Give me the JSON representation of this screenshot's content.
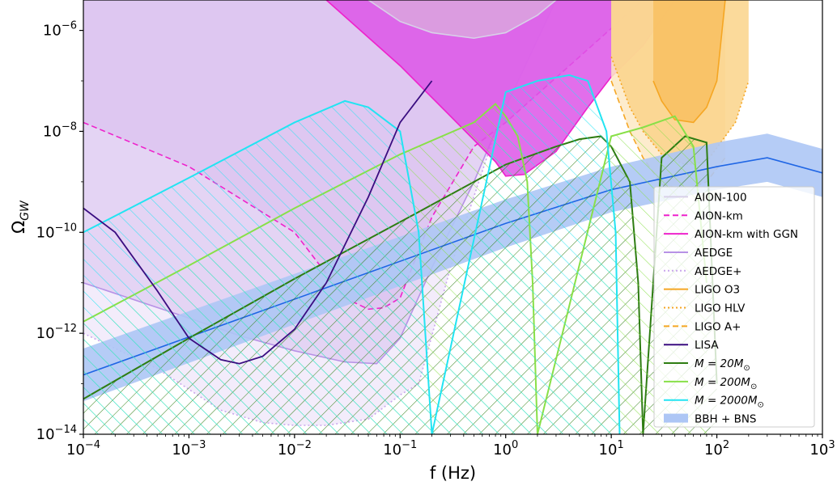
{
  "chart_data": {
    "type": "line",
    "xlabel": "f (Hz)",
    "ylabel": "Ω_GW",
    "xscale": "log",
    "yscale": "log",
    "xlim": [
      0.0001,
      1000
    ],
    "ylim": [
      1e-14,
      4e-06
    ],
    "x_ticks": [
      {
        "value": 0.0001,
        "base": "10",
        "exp": "−4"
      },
      {
        "value": 0.001,
        "base": "10",
        "exp": "−3"
      },
      {
        "value": 0.01,
        "base": "10",
        "exp": "−2"
      },
      {
        "value": 0.1,
        "base": "10",
        "exp": "−1"
      },
      {
        "value": 1,
        "base": "10",
        "exp": "0"
      },
      {
        "value": 10,
        "base": "10",
        "exp": "1"
      },
      {
        "value": 100,
        "base": "10",
        "exp": "2"
      },
      {
        "value": 1000,
        "base": "10",
        "exp": "3"
      }
    ],
    "y_ticks": [
      {
        "value": 1e-14,
        "base": "10",
        "exp": "−14"
      },
      {
        "value": 1e-12,
        "base": "10",
        "exp": "−12"
      },
      {
        "value": 1e-10,
        "base": "10",
        "exp": "−10"
      },
      {
        "value": 1e-08,
        "base": "10",
        "exp": "−8"
      },
      {
        "value": 1e-06,
        "base": "10",
        "exp": "−6"
      }
    ],
    "legend_position": "lower-right",
    "series": [
      {
        "name": "AION-100",
        "kind": "sensitivity-region",
        "color": "#d8d0e8",
        "fill": "#dba6de",
        "line": "solid",
        "x": [
          0.05,
          0.1,
          0.2,
          0.5,
          1,
          2,
          3
        ],
        "y": [
          4e-06,
          1.5e-06,
          9e-07,
          7e-07,
          9e-07,
          2e-06,
          4e-06
        ]
      },
      {
        "name": "AION-km",
        "kind": "sensitivity-region",
        "color": "#ee22cc",
        "fill": "#ddc4f0",
        "line": "dashed",
        "x": [
          0.0001,
          0.001,
          0.01,
          0.03,
          0.05,
          0.07,
          0.1,
          0.2,
          0.5,
          1,
          5,
          20
        ],
        "y": [
          1.5e-08,
          2e-09,
          1e-10,
          5e-12,
          3e-12,
          3.2e-12,
          5e-12,
          2e-10,
          5e-09,
          1.5e-08,
          3e-07,
          4e-06
        ]
      },
      {
        "name": "AION-km with GGN",
        "kind": "sensitivity-region",
        "color": "#ee22cc",
        "fill": "#dd55e8",
        "line": "solid",
        "x": [
          0.02,
          0.1,
          0.3,
          0.8,
          1,
          1.5,
          3,
          6,
          10,
          20,
          40
        ],
        "y": [
          4e-06,
          2e-07,
          2e-08,
          2.5e-09,
          1.3e-09,
          1.4e-09,
          4e-09,
          3e-08,
          1.2e-07,
          5e-07,
          4e-06
        ]
      },
      {
        "name": "AEDGE",
        "kind": "sensitivity-region",
        "color": "#b792e6",
        "fill": "#e0d0f2",
        "line": "solid",
        "x": [
          0.0001,
          0.001,
          0.003,
          0.01,
          0.03,
          0.06,
          0.1,
          0.2,
          0.5,
          1,
          3
        ],
        "y": [
          1e-11,
          2e-12,
          9e-13,
          4.5e-13,
          2.7e-13,
          2.5e-13,
          8e-13,
          2e-11,
          1e-09,
          3e-08,
          4e-06
        ]
      },
      {
        "name": "AEDGE+",
        "kind": "sensitivity-region",
        "color": "#c9a6ec",
        "fill": "#f1e9fa",
        "line": "dotted",
        "x": [
          0.0001,
          0.0005,
          0.002,
          0.005,
          0.01,
          0.02,
          0.05,
          0.1,
          0.15,
          0.3,
          0.8,
          2
        ],
        "y": [
          1e-12,
          2e-13,
          3e-14,
          1.7e-14,
          1.5e-14,
          1.5e-14,
          2e-14,
          6e-14,
          1e-13,
          2e-11,
          1e-08,
          4e-06
        ]
      },
      {
        "name": "LIGO O3",
        "kind": "sensitivity-region",
        "color": "#f5a623",
        "fill": "#f8c060",
        "line": "solid",
        "x": [
          25,
          30,
          40,
          60,
          80,
          100,
          120
        ],
        "y": [
          1e-07,
          4e-08,
          1.7e-08,
          1.5e-08,
          3e-08,
          1e-07,
          4e-06
        ]
      },
      {
        "name": "LIGO HLV",
        "kind": "sensitivity-region",
        "color": "#f5a623",
        "fill": "#fad48a",
        "line": "dotted",
        "x": [
          10,
          15,
          20,
          30,
          50,
          80,
          150,
          200
        ],
        "y": [
          3e-07,
          3e-08,
          1e-08,
          3.5e-09,
          2.2e-09,
          2.5e-09,
          1.5e-08,
          1e-07
        ]
      },
      {
        "name": "LIGO A+",
        "kind": "sensitivity-region",
        "color": "#f5a623",
        "fill": "#fde9c4",
        "line": "dashed",
        "x": [
          10,
          15,
          20,
          30,
          50,
          80,
          120
        ],
        "y": [
          1e-07,
          1e-08,
          3e-09,
          9e-10,
          7e-10,
          1e-09,
          3e-09
        ]
      },
      {
        "name": "LISA",
        "kind": "sensitivity-curve",
        "color": "#3a0d80",
        "line": "solid",
        "x": [
          0.0001,
          0.0002,
          0.0005,
          0.001,
          0.002,
          0.003,
          0.005,
          0.01,
          0.02,
          0.05,
          0.1,
          0.2
        ],
        "y": [
          3e-10,
          1e-10,
          7e-12,
          8e-13,
          3e-13,
          2.5e-13,
          3.5e-13,
          1.2e-12,
          1e-11,
          5e-10,
          1.5e-08,
          1e-07
        ]
      },
      {
        "name": "M = 20M_⊙",
        "legend_label": {
          "pre": "M = 20M",
          "sub": "⊙"
        },
        "kind": "model",
        "color": "#2e7d12",
        "line": "solid",
        "x": [
          0.0001,
          0.001,
          0.01,
          0.1,
          1,
          3,
          5,
          8,
          10,
          15,
          18,
          20,
          30,
          50,
          80,
          100
        ],
        "y": [
          5e-14,
          8e-13,
          1.2e-11,
          1.6e-10,
          2.2e-09,
          5e-09,
          7e-09,
          8e-09,
          5e-09,
          1e-09,
          1e-11,
          1e-14,
          3e-09,
          8e-09,
          6e-09,
          1e-13
        ]
      },
      {
        "name": "M = 200M_⊙",
        "legend_label": {
          "pre": "M = 200M",
          "sub": "⊙"
        },
        "kind": "model",
        "color": "#88e048",
        "line": "solid",
        "x": [
          0.0001,
          0.001,
          0.01,
          0.1,
          0.5,
          0.8,
          1,
          1.3,
          1.6,
          1.8,
          2,
          10,
          20,
          40,
          60,
          80
        ],
        "y": [
          1.7e-12,
          2.2e-11,
          3e-10,
          3.5e-09,
          1.5e-08,
          3.5e-08,
          2e-08,
          8e-09,
          1e-09,
          1e-11,
          1e-14,
          8e-09,
          1.2e-08,
          2e-08,
          5e-09,
          1e-11
        ]
      },
      {
        "name": "M = 2000M_⊙",
        "legend_label": {
          "pre": "M = 2000M",
          "sub": "⊙"
        },
        "kind": "model",
        "color": "#22e4f2",
        "line": "solid",
        "x": [
          0.0001,
          0.001,
          0.01,
          0.03,
          0.05,
          0.1,
          0.15,
          0.2,
          1,
          2,
          4,
          6,
          9,
          11,
          12
        ],
        "y": [
          1e-10,
          1.2e-09,
          1.5e-08,
          4e-08,
          3e-08,
          1e-08,
          1e-10,
          1e-14,
          6e-08,
          1e-07,
          1.3e-07,
          1e-07,
          1e-08,
          1e-10,
          1e-14
        ]
      },
      {
        "name": "BBH + BNS",
        "kind": "band",
        "color": "#1f66e5",
        "band_color": "#adc6f5",
        "line": "solid",
        "x": [
          0.0001,
          1,
          10,
          100,
          300,
          1000
        ],
        "y": [
          1.5e-13,
          1.5e-10,
          7e-10,
          2e-09,
          3e-09,
          1.5e-09
        ],
        "y_low": [
          4.5e-14,
          5e-11,
          2.5e-10,
          7e-10,
          1e-09,
          5e-10
        ],
        "y_high": [
          5e-13,
          4.5e-10,
          2e-09,
          6e-09,
          9e-09,
          4.5e-09
        ]
      }
    ]
  }
}
